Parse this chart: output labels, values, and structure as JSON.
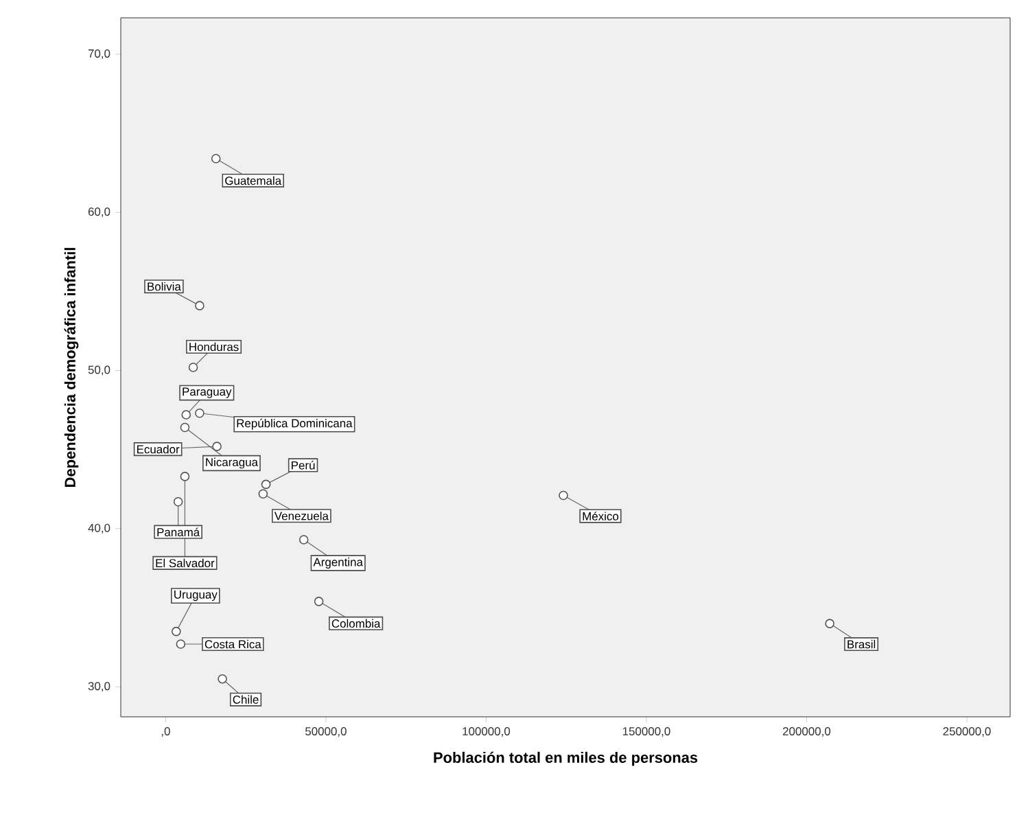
{
  "chart_data": {
    "type": "scatter",
    "xlabel": "Población total en miles de personas",
    "ylabel": "Dependencia demográfica infantil",
    "xlim": [
      -14000,
      263500
    ],
    "ylim": [
      28.1,
      72.3
    ],
    "xticks": [
      {
        "value": 0,
        "label": ",0"
      },
      {
        "value": 50000,
        "label": "50000,0"
      },
      {
        "value": 100000,
        "label": "100000,0"
      },
      {
        "value": 150000,
        "label": "150000,0"
      },
      {
        "value": 200000,
        "label": "200000,0"
      },
      {
        "value": 250000,
        "label": "250000,0"
      }
    ],
    "yticks": [
      {
        "value": 30,
        "label": "30,0"
      },
      {
        "value": 40,
        "label": "40,0"
      },
      {
        "value": 50,
        "label": "50,0"
      },
      {
        "value": 60,
        "label": "60,0"
      },
      {
        "value": 70,
        "label": "70,0"
      }
    ],
    "marker": "circle",
    "grid": false,
    "series": [
      {
        "color": "#555555",
        "x": [
          15700,
          10600,
          8600,
          6400,
          10600,
          16000,
          6000,
          31300,
          30400,
          3900,
          6000,
          43100,
          3300,
          4700,
          47800,
          17700,
          124100,
          207200
        ],
        "values": [
          63.4,
          54.1,
          50.2,
          47.2,
          47.3,
          45.2,
          46.4,
          42.8,
          42.2,
          41.7,
          43.3,
          39.3,
          33.5,
          32.7,
          35.4,
          30.5,
          42.1,
          34.0
        ]
      }
    ],
    "annotations": [
      {
        "text": "Guatemala",
        "x": 15700,
        "y": 63.4
      },
      {
        "text": "Bolivia",
        "x": 10600,
        "y": 54.1
      },
      {
        "text": "Honduras",
        "x": 8600,
        "y": 50.2
      },
      {
        "text": "Paraguay",
        "x": 6400,
        "y": 47.2
      },
      {
        "text": "República Dominicana",
        "x": 10600,
        "y": 47.3
      },
      {
        "text": "Ecuador",
        "x": 16000,
        "y": 45.2
      },
      {
        "text": "Nicaragua",
        "x": 6000,
        "y": 46.4
      },
      {
        "text": "Perú",
        "x": 31300,
        "y": 42.8
      },
      {
        "text": "Venezuela",
        "x": 30400,
        "y": 42.2
      },
      {
        "text": "Panamá",
        "x": 3900,
        "y": 41.7
      },
      {
        "text": "El Salvador",
        "x": 6000,
        "y": 43.3
      },
      {
        "text": "Argentina",
        "x": 43100,
        "y": 39.3
      },
      {
        "text": "Uruguay",
        "x": 3300,
        "y": 33.5
      },
      {
        "text": "Costa Rica",
        "x": 4700,
        "y": 32.7
      },
      {
        "text": "Colombia",
        "x": 47800,
        "y": 35.4
      },
      {
        "text": "Chile",
        "x": 17700,
        "y": 30.5
      },
      {
        "text": "México",
        "x": 124100,
        "y": 42.1
      },
      {
        "text": "Brasil",
        "x": 207200,
        "y": 34.0
      }
    ]
  }
}
